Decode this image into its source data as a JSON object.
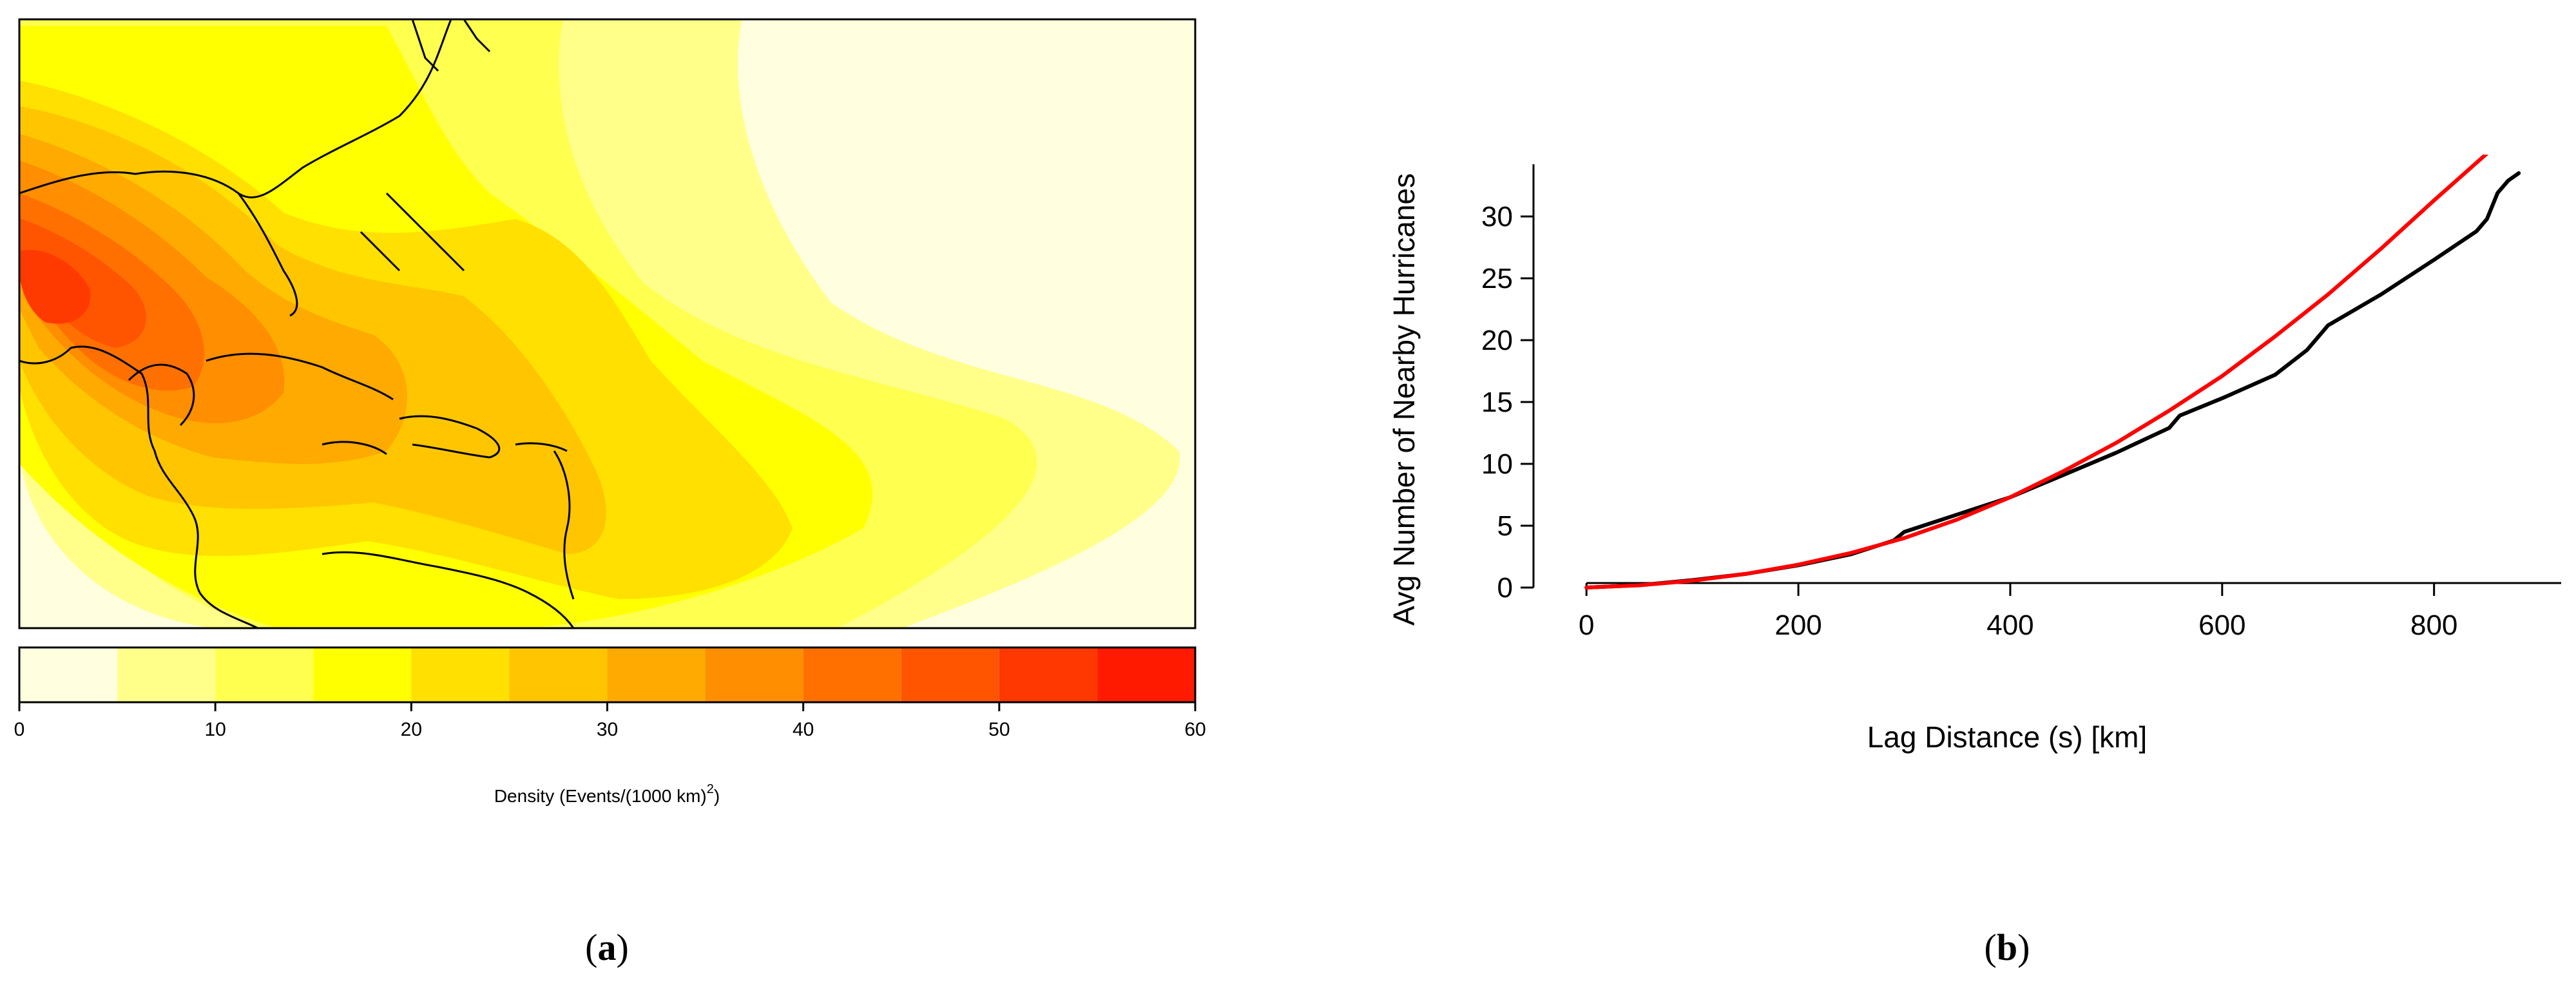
{
  "panel_a": {
    "label_open": "(",
    "label_letter": "a",
    "label_close": ")",
    "colorbar": {
      "ticks": [
        "0",
        "10",
        "20",
        "30",
        "40",
        "50",
        "60"
      ],
      "bins": [
        0,
        5,
        10,
        15,
        20,
        25,
        30,
        35,
        40,
        45,
        50,
        55,
        60
      ],
      "colors": [
        "#FFFFE0",
        "#FFFF8A",
        "#FFFF50",
        "#FFFF00",
        "#FFE000",
        "#FFC600",
        "#FFAA00",
        "#FF8E00",
        "#FF7000",
        "#FF5400",
        "#FF3700",
        "#FF1A00"
      ],
      "title": "Density (Events/(1000 km)",
      "title_sup": "2",
      "title_end": ")"
    },
    "map_description_colors": {
      "high": "#FF3A00",
      "mid": "#FFA500",
      "low": "#FFFF00",
      "background": "#FFFFE0",
      "coast": "#000000"
    }
  },
  "panel_b": {
    "label_open": "(",
    "label_letter": "b",
    "label_close": ")"
  },
  "chart_data": {
    "type": "line",
    "xlabel": "Lag Distance (s) [km]",
    "ylabel": "Avg Number of Nearby Hurricanes",
    "xlim": [
      0,
      900
    ],
    "ylim": [
      0,
      35
    ],
    "xticks": [
      0,
      200,
      400,
      600,
      800
    ],
    "yticks": [
      0,
      5,
      10,
      15,
      20,
      25,
      30
    ],
    "grid": false,
    "series": [
      {
        "color": "#000000",
        "x": [
          0,
          50,
          100,
          150,
          200,
          250,
          290,
          300,
          350,
          400,
          450,
          500,
          550,
          560,
          600,
          650,
          680,
          700,
          750,
          800,
          840,
          850,
          860,
          870,
          880
        ],
        "y": [
          0,
          0.2,
          0.6,
          1.1,
          1.8,
          2.7,
          3.8,
          4.5,
          5.9,
          7.3,
          9.1,
          10.9,
          12.9,
          13.9,
          15.3,
          17.2,
          19.2,
          21.2,
          23.7,
          26.5,
          28.8,
          29.8,
          31.9,
          32.9,
          33.5
        ]
      },
      {
        "color": "#FF0000",
        "x": [
          0,
          50,
          100,
          150,
          200,
          250,
          300,
          350,
          400,
          450,
          500,
          550,
          600,
          650,
          700,
          750,
          800,
          850,
          880
        ],
        "y": [
          0,
          0.18,
          0.55,
          1.1,
          1.85,
          2.8,
          4.0,
          5.5,
          7.3,
          9.4,
          11.7,
          14.3,
          17.1,
          20.3,
          23.7,
          27.4,
          31.3,
          35.1,
          36.9
        ]
      }
    ]
  }
}
